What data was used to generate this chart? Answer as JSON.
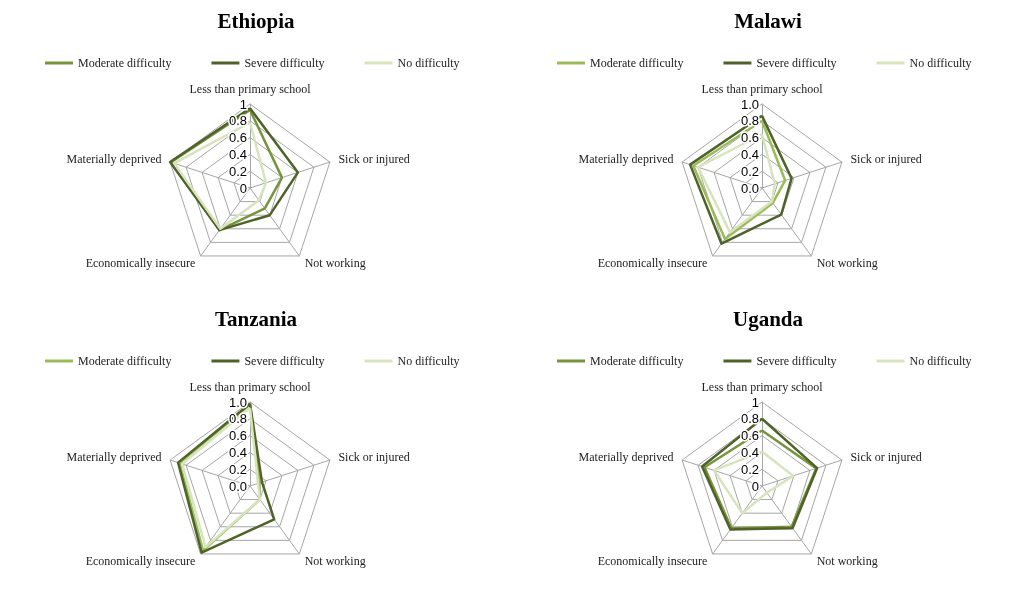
{
  "chart_data": [
    {
      "type": "radar",
      "title": "Ethiopia",
      "categories": [
        "Less than primary school",
        "Sick or injured",
        "Not working",
        "Economically insecure",
        "Materially deprived"
      ],
      "ylim": [
        0,
        1
      ],
      "yticks": [
        0,
        0.2,
        0.4,
        0.6,
        0.8,
        1
      ],
      "grid": true,
      "legend": "top",
      "series": [
        {
          "name": "Moderate difficulty",
          "color": "#77933c",
          "values": [
            0.93,
            0.4,
            0.3,
            0.62,
            0.99
          ]
        },
        {
          "name": "Severe difficulty",
          "color": "#4f6228",
          "values": [
            0.95,
            0.6,
            0.4,
            0.62,
            1.0
          ]
        },
        {
          "name": "No difficulty",
          "color": "#d7e4bd",
          "values": [
            0.78,
            0.2,
            0.18,
            0.6,
            0.95
          ]
        }
      ]
    },
    {
      "type": "radar",
      "title": "Malawi",
      "categories": [
        "Less than primary school",
        "Sick or injured",
        "Not working",
        "Economically insecure",
        "Materially deprived"
      ],
      "ylim": [
        0,
        1
      ],
      "yticks": [
        {
          "value": 0,
          "label": "0.0"
        },
        {
          "value": 0.2,
          "label": "0.2"
        },
        {
          "value": 0.4,
          "label": "0.4"
        },
        {
          "value": 0.6,
          "label": "0.6"
        },
        {
          "value": 0.8,
          "label": "0.8"
        },
        {
          "value": 1,
          "label": "1.0"
        }
      ],
      "grid": true,
      "legend": "top",
      "series": [
        {
          "name": "Moderate difficulty",
          "color": "#9bbb59",
          "values": [
            0.8,
            0.29,
            0.22,
            0.75,
            0.86
          ]
        },
        {
          "name": "Severe difficulty",
          "color": "#4f6228",
          "values": [
            0.86,
            0.37,
            0.39,
            0.82,
            0.9
          ]
        },
        {
          "name": "No difficulty",
          "color": "#d7e4bd",
          "values": [
            0.64,
            0.16,
            0.2,
            0.65,
            0.8
          ]
        }
      ]
    },
    {
      "type": "radar",
      "title": "Tanzania",
      "categories": [
        "Less than primary school",
        "Sick or injured",
        "Not working",
        "Economically insecure",
        "Materially deprived"
      ],
      "ylim": [
        0,
        1
      ],
      "yticks": [
        {
          "value": 0,
          "label": "0.0"
        },
        {
          "value": 0.2,
          "label": "0.2"
        },
        {
          "value": 0.4,
          "label": "0.4"
        },
        {
          "value": 0.6,
          "label": "0.6"
        },
        {
          "value": 0.8,
          "label": "0.8"
        },
        {
          "value": 1,
          "label": "1.0"
        }
      ],
      "grid": true,
      "legend": "top",
      "series": [
        {
          "name": "Moderate difficulty",
          "color": "#9bbb59",
          "values": [
            0.97,
            0.12,
            0.2,
            0.95,
            0.88
          ]
        },
        {
          "name": "Severe difficulty",
          "color": "#4f6228",
          "values": [
            0.98,
            0.15,
            0.49,
            0.98,
            0.9
          ]
        },
        {
          "name": "No difficulty",
          "color": "#d7e4bd",
          "values": [
            0.93,
            0.1,
            0.2,
            0.9,
            0.85
          ]
        }
      ]
    },
    {
      "type": "radar",
      "title": "Uganda",
      "categories": [
        "Less than primary school",
        "Sick or injured",
        "Not working",
        "Economically insecure",
        "Materially deprived"
      ],
      "ylim": [
        0,
        1
      ],
      "yticks": [
        0,
        0.2,
        0.4,
        0.6,
        0.8,
        1
      ],
      "grid": true,
      "legend": "top",
      "series": [
        {
          "name": "Moderate difficulty",
          "color": "#77933c",
          "values": [
            0.66,
            0.68,
            0.6,
            0.62,
            0.72
          ]
        },
        {
          "name": "Severe difficulty",
          "color": "#4f6228",
          "values": [
            0.8,
            0.69,
            0.62,
            0.64,
            0.75
          ]
        },
        {
          "name": "No difficulty",
          "color": "#d7e4bd",
          "values": [
            0.41,
            0.39,
            0.1,
            0.4,
            0.6
          ]
        }
      ]
    }
  ]
}
